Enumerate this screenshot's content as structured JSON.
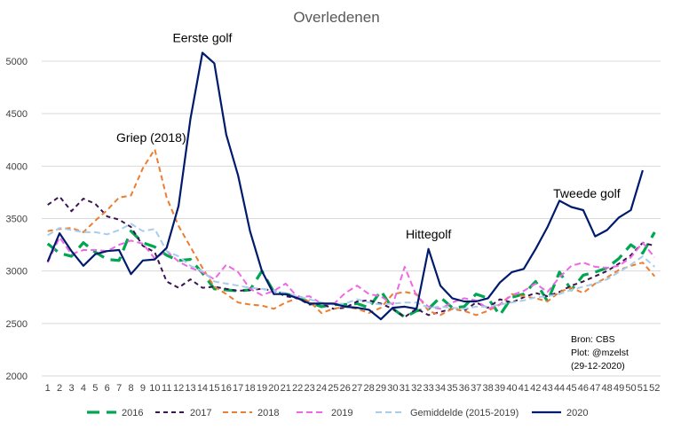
{
  "chart_data": {
    "type": "line",
    "title": "Overledenen",
    "xlabel": "",
    "ylabel": "",
    "x": [
      1,
      2,
      3,
      4,
      5,
      6,
      7,
      8,
      9,
      10,
      11,
      12,
      13,
      14,
      15,
      16,
      17,
      18,
      19,
      20,
      21,
      22,
      23,
      24,
      25,
      26,
      27,
      28,
      29,
      30,
      31,
      32,
      33,
      34,
      35,
      36,
      37,
      38,
      39,
      40,
      41,
      42,
      43,
      44,
      45,
      46,
      47,
      48,
      49,
      50,
      51,
      52
    ],
    "ylim": [
      2000,
      5000
    ],
    "yticks": [
      2000,
      2500,
      3000,
      3500,
      4000,
      4500,
      5000
    ],
    "grid": true,
    "legend_position": "bottom",
    "series": [
      {
        "name": "2016",
        "color": "#00a651",
        "dash": "14,8",
        "width": 3.2,
        "values": [
          3260,
          3170,
          3140,
          3270,
          3180,
          3110,
          3100,
          3380,
          3270,
          3230,
          3150,
          3100,
          3110,
          2980,
          2830,
          2820,
          2810,
          2820,
          3000,
          2800,
          2780,
          2760,
          2700,
          2660,
          2680,
          2680,
          2690,
          2650,
          2810,
          2640,
          2560,
          2620,
          2640,
          2750,
          2650,
          2660,
          2780,
          2740,
          2580,
          2750,
          2780,
          2900,
          2710,
          2990,
          2820,
          2960,
          2990,
          3030,
          3120,
          3250,
          3170,
          3370
        ]
      },
      {
        "name": "2017",
        "color": "#3b1453",
        "dash": "5,4",
        "width": 2,
        "values": [
          3630,
          3710,
          3570,
          3690,
          3640,
          3520,
          3490,
          3420,
          3240,
          3180,
          2900,
          2840,
          2920,
          2840,
          2850,
          2830,
          2810,
          2820,
          2830,
          2810,
          2760,
          2740,
          2680,
          2690,
          2640,
          2650,
          2710,
          2720,
          2690,
          2640,
          2560,
          2640,
          2580,
          2610,
          2640,
          2620,
          2700,
          2650,
          2730,
          2700,
          2750,
          2790,
          2760,
          2800,
          2860,
          2900,
          2950,
          3000,
          3070,
          3150,
          3270,
          3240
        ]
      },
      {
        "name": "2018",
        "color": "#ed7d31",
        "dash": "6,4",
        "width": 2,
        "values": [
          3380,
          3400,
          3410,
          3370,
          3480,
          3580,
          3700,
          3720,
          3980,
          4160,
          3700,
          3430,
          3230,
          3030,
          2850,
          2780,
          2700,
          2680,
          2670,
          2640,
          2700,
          2740,
          2710,
          2600,
          2640,
          2660,
          2640,
          2600,
          2650,
          2780,
          2800,
          2780,
          2620,
          2580,
          2640,
          2620,
          2580,
          2620,
          2680,
          2780,
          2760,
          2740,
          2710,
          2800,
          2840,
          2790,
          2880,
          2940,
          3010,
          3050,
          3080,
          2950
        ]
      },
      {
        "name": "2019",
        "color": "#f067e6",
        "dash": "7,4",
        "width": 2,
        "values": [
          3080,
          3320,
          3160,
          3200,
          3200,
          3190,
          3250,
          3290,
          3260,
          3120,
          3190,
          3090,
          3030,
          2990,
          2920,
          3060,
          2990,
          2830,
          2770,
          2810,
          2880,
          2750,
          2760,
          2690,
          2680,
          2790,
          2860,
          2780,
          2760,
          2680,
          3040,
          2760,
          2660,
          2640,
          2700,
          2740,
          2720,
          2640,
          2680,
          2770,
          2810,
          2880,
          2800,
          2940,
          3050,
          3080,
          3040,
          3030,
          3050,
          3130,
          3270,
          3130
        ]
      },
      {
        "name": "Gemiddelde (2015-2019)",
        "color": "#a8cdeb",
        "dash": "7,4",
        "width": 2,
        "values": [
          3340,
          3410,
          3390,
          3370,
          3370,
          3350,
          3390,
          3450,
          3380,
          3400,
          3190,
          3140,
          3050,
          3000,
          2900,
          2880,
          2860,
          2840,
          2830,
          2810,
          2790,
          2760,
          2730,
          2700,
          2680,
          2690,
          2730,
          2700,
          2680,
          2690,
          2700,
          2700,
          2650,
          2660,
          2650,
          2640,
          2660,
          2660,
          2680,
          2700,
          2720,
          2750,
          2760,
          2780,
          2820,
          2850,
          2880,
          2920,
          2990,
          3060,
          3140,
          3040
        ]
      },
      {
        "name": "2020",
        "color": "#001a6e",
        "dash": "",
        "width": 2.2,
        "values": [
          3090,
          3360,
          3190,
          3050,
          3160,
          3190,
          3200,
          2970,
          3100,
          3110,
          3220,
          3620,
          4450,
          5080,
          4980,
          4300,
          3910,
          3380,
          3000,
          2780,
          2780,
          2740,
          2690,
          2690,
          2690,
          2660,
          2650,
          2630,
          2540,
          2650,
          2660,
          2640,
          3210,
          2860,
          2740,
          2710,
          2710,
          2740,
          2890,
          2990,
          3020,
          3210,
          3420,
          3670,
          3610,
          3580,
          3330,
          3390,
          3510,
          3580,
          3960,
          null
        ]
      }
    ],
    "annotations": [
      {
        "text": "Eerste golf",
        "x": 14,
        "y": 5180
      },
      {
        "text": "Griep (2018)",
        "x": 9.7,
        "y": 4230
      },
      {
        "text": "Hittegolf",
        "x": 33,
        "y": 3310
      },
      {
        "text": "Tweede golf",
        "x": 46.3,
        "y": 3700
      }
    ],
    "source_note": [
      "Bron: CBS",
      "Plot: @mzelst",
      "(29-12-2020)"
    ]
  }
}
